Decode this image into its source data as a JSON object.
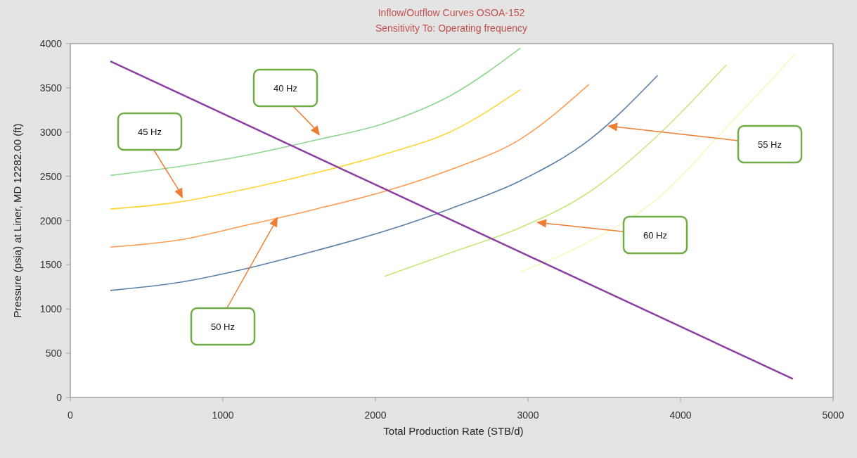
{
  "chart_data": {
    "type": "line",
    "title": "Inflow/Outflow Curves OSOA-152",
    "subtitle": "Sensitivity To: Operating frequency",
    "xlabel": "Total Production Rate (STB/d)",
    "ylabel": "Pressure (psia) at Liner, MD 12282.00 (ft)",
    "xlim": [
      0,
      5000
    ],
    "xticks": [
      0,
      1000,
      2000,
      3000,
      4000,
      5000
    ],
    "ylim": [
      0,
      4000
    ],
    "yticks": [
      0,
      500,
      1000,
      1500,
      2000,
      2500,
      3000,
      3500,
      4000
    ],
    "grid": false,
    "series": [
      {
        "color": "#8ed68f",
        "x": [
          263,
          710,
          1160,
          1610,
          2060,
          2500,
          2950
        ],
        "values": [
          2510,
          2610,
          2740,
          2910,
          3100,
          3420,
          3950
        ]
      },
      {
        "color": "#ffd633",
        "x": [
          263,
          710,
          1160,
          1610,
          2060,
          2500,
          2950
        ],
        "values": [
          2130,
          2210,
          2360,
          2540,
          2750,
          3010,
          3480
        ]
      },
      {
        "color": "#ff9c52",
        "x": [
          263,
          710,
          1160,
          1610,
          2060,
          2500,
          2950,
          3400
        ],
        "values": [
          1700,
          1780,
          1950,
          2130,
          2330,
          2580,
          2920,
          3540
        ]
      },
      {
        "color": "#5b7fa8",
        "x": [
          263,
          710,
          1160,
          1610,
          2060,
          2500,
          2950,
          3400,
          3850
        ],
        "values": [
          1210,
          1300,
          1460,
          1660,
          1880,
          2140,
          2450,
          2910,
          3640
        ]
      },
      {
        "color": "#c6e87a",
        "x": [
          2060,
          2500,
          2950,
          3400,
          3850,
          4300
        ],
        "values": [
          1370,
          1640,
          1920,
          2320,
          2960,
          3760
        ]
      },
      {
        "color": "#f8f8c0",
        "x": [
          2950,
          3400,
          3850,
          4300,
          4750
        ],
        "values": [
          1420,
          1760,
          2250,
          3050,
          3880
        ]
      },
      {
        "color": "#8b3fa0",
        "x": [
          263,
          4737
        ],
        "values": [
          3800,
          210
        ]
      }
    ],
    "annotations": [
      "40 Hz",
      "45 Hz",
      "50 Hz",
      "55 Hz",
      "60 Hz"
    ]
  }
}
